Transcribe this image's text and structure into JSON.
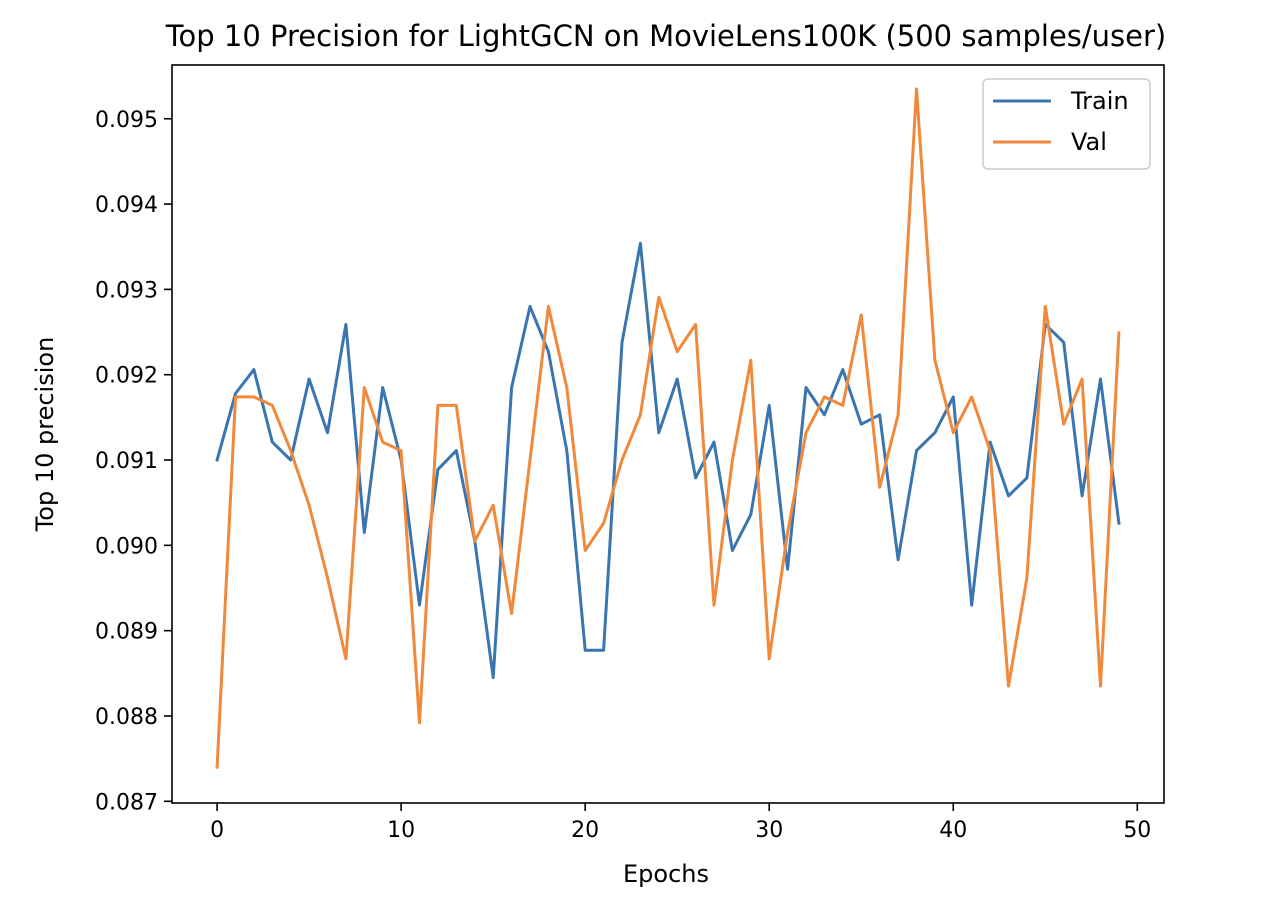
{
  "chart_data": {
    "type": "line",
    "title": "Top 10 Precision for LightGCN on MovieLens100K (500 samples/user)",
    "xlabel": "Epochs",
    "ylabel": "Top 10 precision",
    "xlim": [
      -2.45,
      51.45
    ],
    "ylim": [
      0.08698,
      0.09563
    ],
    "x_ticks": [
      0,
      10,
      20,
      30,
      40,
      50
    ],
    "x_tick_labels": [
      "0",
      "10",
      "20",
      "30",
      "40",
      "50"
    ],
    "y_ticks": [
      0.087,
      0.088,
      0.089,
      0.09,
      0.091,
      0.092,
      0.093,
      0.094,
      0.095
    ],
    "y_tick_labels": [
      "0.087",
      "0.088",
      "0.089",
      "0.090",
      "0.091",
      "0.092",
      "0.093",
      "0.094",
      "0.095"
    ],
    "grid": false,
    "legend_position": "top-right",
    "x": [
      0,
      1,
      2,
      3,
      4,
      5,
      6,
      7,
      8,
      9,
      10,
      11,
      12,
      13,
      14,
      15,
      16,
      17,
      18,
      19,
      20,
      21,
      22,
      23,
      24,
      25,
      26,
      27,
      28,
      29,
      30,
      31,
      32,
      33,
      34,
      35,
      36,
      37,
      38,
      39,
      40,
      41,
      42,
      43,
      44,
      45,
      46,
      47,
      48,
      49
    ],
    "series": [
      {
        "name": "Train",
        "color": "#3a75b0",
        "values": [
          0.091,
          0.09178,
          0.09206,
          0.09121,
          0.091,
          0.09195,
          0.09132,
          0.09259,
          0.09015,
          0.09185,
          0.091,
          0.0893,
          0.09089,
          0.09111,
          0.09005,
          0.08845,
          0.09185,
          0.0928,
          0.09227,
          0.09111,
          0.08877,
          0.08877,
          0.09238,
          0.09354,
          0.09132,
          0.09195,
          0.09079,
          0.09121,
          0.08994,
          0.09036,
          0.09164,
          0.08972,
          0.09185,
          0.09153,
          0.09206,
          0.09142,
          0.09153,
          0.08983,
          0.09111,
          0.09132,
          0.09174,
          0.0893,
          0.09121,
          0.09058,
          0.09079,
          0.09259,
          0.09238,
          0.09058,
          0.09195,
          0.09026
        ]
      },
      {
        "name": "Val",
        "color": "#f0893b",
        "values": [
          0.0874,
          0.09174,
          0.09174,
          0.09164,
          0.09111,
          0.09047,
          0.08962,
          0.08867,
          0.09185,
          0.09121,
          0.09111,
          0.08792,
          0.09164,
          0.09164,
          0.09005,
          0.09047,
          0.0892,
          0.091,
          0.0928,
          0.09185,
          0.08994,
          0.09026,
          0.091,
          0.09153,
          0.09291,
          0.09227,
          0.09259,
          0.0893,
          0.091,
          0.09217,
          0.08867,
          0.09015,
          0.09132,
          0.09174,
          0.09164,
          0.0927,
          0.09068,
          0.09153,
          0.09535,
          0.09217,
          0.09132,
          0.09174,
          0.09111,
          0.08835,
          0.08962,
          0.0928,
          0.09142,
          0.09195,
          0.08835,
          0.09249
        ]
      }
    ]
  }
}
